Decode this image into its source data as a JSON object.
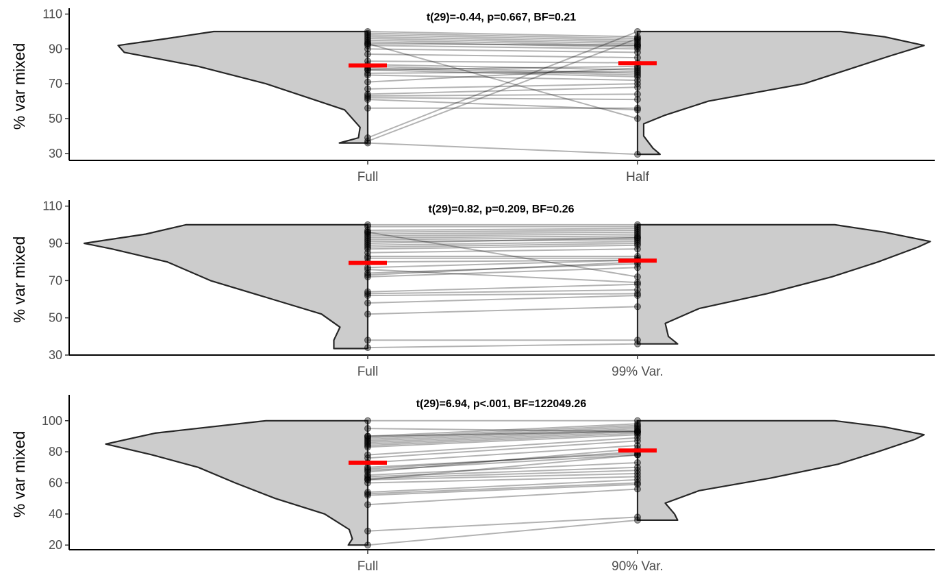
{
  "colors": {
    "violin_fill": "#cccccc",
    "violin_stroke": "#262626",
    "mean_bar": "#ff0000",
    "pair_line": "#000000",
    "point": "#000000",
    "axis": "#000000"
  },
  "chart_data": [
    {
      "type": "violin",
      "title": "t(29)=-0.44, p=0.667, BF=0.21",
      "ylabel": "% var mixed",
      "categories": [
        "Full",
        "Half"
      ],
      "ylim": [
        26,
        111
      ],
      "yticks": [
        30,
        50,
        70,
        90,
        110
      ],
      "means": [
        80.5,
        81.8
      ],
      "violins": [
        {
          "points": [
            [
              36,
              0
            ],
            [
              36,
              0.092
            ],
            [
              39,
              0.03
            ],
            [
              45,
              0.025
            ],
            [
              55,
              0.075
            ],
            [
              60,
              0.16
            ],
            [
              70,
              0.33
            ],
            [
              80,
              0.55
            ],
            [
              88,
              0.79
            ],
            [
              92,
              0.81
            ],
            [
              96,
              0.65
            ],
            [
              100,
              0.5
            ]
          ]
        },
        {
          "points": [
            [
              29.5,
              0
            ],
            [
              29.5,
              0.073
            ],
            [
              33,
              0.05
            ],
            [
              40,
              0.02
            ],
            [
              47,
              0.02
            ],
            [
              52,
              0.09
            ],
            [
              60,
              0.23
            ],
            [
              70,
              0.54
            ],
            [
              78,
              0.68
            ],
            [
              86,
              0.82
            ],
            [
              92,
              0.93
            ],
            [
              97,
              0.8
            ],
            [
              100,
              0.66
            ]
          ]
        }
      ],
      "pairs": [
        [
          100,
          97
        ],
        [
          99,
          96
        ],
        [
          98,
          95
        ],
        [
          97,
          94
        ],
        [
          96,
          93
        ],
        [
          95,
          92
        ],
        [
          94,
          91
        ],
        [
          93,
          92
        ],
        [
          92,
          90
        ],
        [
          90,
          88
        ],
        [
          87,
          85
        ],
        [
          83,
          82
        ],
        [
          81,
          78
        ],
        [
          80,
          76
        ],
        [
          79,
          75
        ],
        [
          78,
          74
        ],
        [
          78,
          80
        ],
        [
          76,
          77
        ],
        [
          75,
          72
        ],
        [
          71,
          79
        ],
        [
          67,
          70
        ],
        [
          64,
          68
        ],
        [
          63,
          64
        ],
        [
          62,
          61
        ],
        [
          61,
          55
        ],
        [
          56,
          56
        ],
        [
          39,
          100
        ],
        [
          37,
          96
        ],
        [
          93,
          50
        ],
        [
          36,
          29.5
        ]
      ]
    },
    {
      "type": "violin",
      "title": "t(29)=0.82, p=0.209, BF=0.26",
      "ylabel": "% var mixed",
      "categories": [
        "Full",
        "99% Var."
      ],
      "ylim": [
        30,
        111
      ],
      "yticks": [
        30,
        50,
        70,
        90,
        110
      ],
      "means": [
        79.5,
        80.7
      ],
      "violins": [
        {
          "points": [
            [
              33.5,
              0
            ],
            [
              33.5,
              0.11
            ],
            [
              38,
              0.11
            ],
            [
              45,
              0.09
            ],
            [
              52,
              0.15
            ],
            [
              60,
              0.31
            ],
            [
              70,
              0.51
            ],
            [
              80,
              0.65
            ],
            [
              87,
              0.83
            ],
            [
              90,
              0.92
            ],
            [
              95,
              0.72
            ],
            [
              100,
              0.59
            ]
          ]
        },
        {
          "points": [
            [
              36,
              0
            ],
            [
              36,
              0.13
            ],
            [
              40,
              0.1
            ],
            [
              47,
              0.09
            ],
            [
              55,
              0.2
            ],
            [
              63,
              0.42
            ],
            [
              72,
              0.63
            ],
            [
              80,
              0.78
            ],
            [
              88,
              0.91
            ],
            [
              91,
              0.95
            ],
            [
              96,
              0.8
            ],
            [
              100,
              0.64
            ]
          ]
        }
      ],
      "pairs": [
        [
          100,
          100
        ],
        [
          99,
          99
        ],
        [
          97,
          98
        ],
        [
          96,
          97
        ],
        [
          95,
          96
        ],
        [
          94,
          95
        ],
        [
          93,
          94
        ],
        [
          92,
          93
        ],
        [
          91,
          92
        ],
        [
          90,
          93
        ],
        [
          89,
          91
        ],
        [
          88,
          90
        ],
        [
          87,
          89
        ],
        [
          85,
          87
        ],
        [
          83,
          83
        ],
        [
          82,
          82
        ],
        [
          80,
          81
        ],
        [
          77,
          81
        ],
        [
          74,
          79
        ],
        [
          73,
          80
        ],
        [
          72,
          77
        ],
        [
          96,
          72
        ],
        [
          64,
          68
        ],
        [
          63,
          65
        ],
        [
          62,
          63
        ],
        [
          58,
          62
        ],
        [
          52,
          56
        ],
        [
          38,
          38
        ],
        [
          34,
          36
        ],
        [
          76,
          69
        ]
      ]
    },
    {
      "type": "violin",
      "title": "t(29)=6.94, p<.001, BF=122049.26",
      "ylabel": "% var mixed",
      "categories": [
        "Full",
        "90% Var."
      ],
      "ylim": [
        17,
        114
      ],
      "yticks": [
        20,
        40,
        60,
        80,
        100
      ],
      "means": [
        73.0,
        80.8
      ],
      "violins": [
        {
          "points": [
            [
              20,
              0
            ],
            [
              20,
              0.063
            ],
            [
              24,
              0.05
            ],
            [
              30,
              0.06
            ],
            [
              40,
              0.14
            ],
            [
              50,
              0.3
            ],
            [
              60,
              0.43
            ],
            [
              70,
              0.55
            ],
            [
              78,
              0.7
            ],
            [
              85,
              0.85
            ],
            [
              92,
              0.69
            ],
            [
              100,
              0.33
            ]
          ]
        },
        {
          "points": [
            [
              36,
              0
            ],
            [
              36,
              0.13
            ],
            [
              40,
              0.12
            ],
            [
              47,
              0.09
            ],
            [
              55,
              0.2
            ],
            [
              63,
              0.43
            ],
            [
              72,
              0.65
            ],
            [
              80,
              0.78
            ],
            [
              88,
              0.9
            ],
            [
              91,
              0.93
            ],
            [
              96,
              0.8
            ],
            [
              100,
              0.64
            ]
          ]
        }
      ],
      "pairs": [
        [
          100,
          100
        ],
        [
          90,
          98
        ],
        [
          89,
          97
        ],
        [
          88,
          96
        ],
        [
          87,
          95
        ],
        [
          86,
          94
        ],
        [
          85,
          93
        ],
        [
          84,
          92
        ],
        [
          83,
          91
        ],
        [
          78,
          89
        ],
        [
          76,
          87
        ],
        [
          73,
          84
        ],
        [
          70,
          79
        ],
        [
          69,
          80
        ],
        [
          68,
          78
        ],
        [
          65,
          73
        ],
        [
          64,
          70
        ],
        [
          63,
          68
        ],
        [
          62,
          66
        ],
        [
          60,
          64
        ],
        [
          54,
          62
        ],
        [
          53,
          60
        ],
        [
          52,
          59
        ],
        [
          46,
          56
        ],
        [
          29,
          38
        ],
        [
          20,
          36
        ],
        [
          95,
          93
        ],
        [
          67,
          82
        ],
        [
          62,
          78
        ],
        [
          90,
          93
        ]
      ]
    }
  ]
}
